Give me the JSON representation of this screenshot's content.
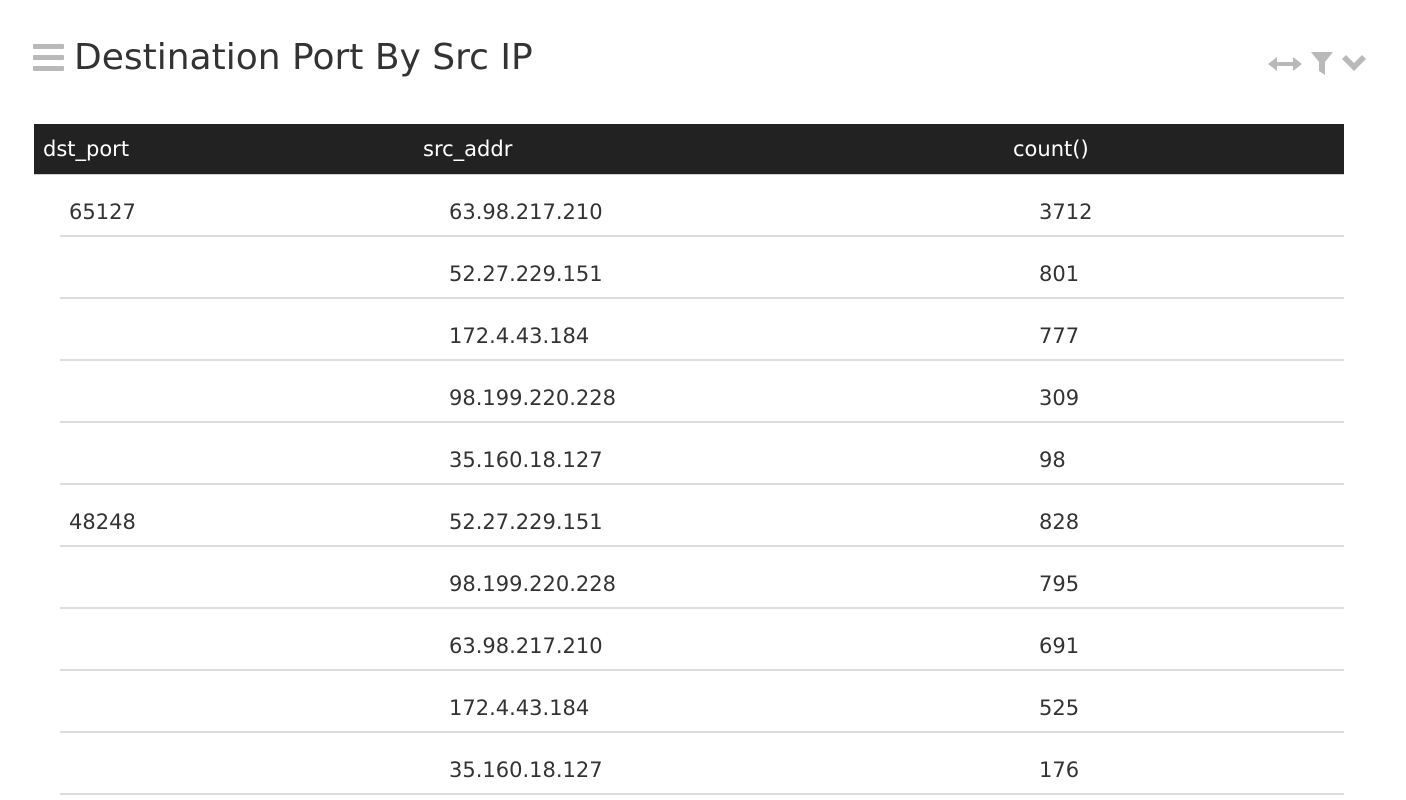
{
  "panel": {
    "title": "Destination Port By Src IP",
    "icons": {
      "drag": "hamburger-icon",
      "expand": "horizontal-arrows-icon",
      "filter": "filter-icon",
      "menu": "chevron-down-icon"
    },
    "colors": {
      "header_bg": "#222222",
      "icon_gray": "#b9b9b9",
      "row_border": "#dddddd"
    }
  },
  "table": {
    "columns": [
      "dst_port",
      "src_addr",
      "count()"
    ],
    "rows": [
      {
        "dst_port": "65127",
        "src_addr": "63.98.217.210",
        "count": "3712"
      },
      {
        "dst_port": "",
        "src_addr": "52.27.229.151",
        "count": "801"
      },
      {
        "dst_port": "",
        "src_addr": "172.4.43.184",
        "count": "777"
      },
      {
        "dst_port": "",
        "src_addr": "98.199.220.228",
        "count": "309"
      },
      {
        "dst_port": "",
        "src_addr": "35.160.18.127",
        "count": "98"
      },
      {
        "dst_port": "48248",
        "src_addr": "52.27.229.151",
        "count": "828"
      },
      {
        "dst_port": "",
        "src_addr": "98.199.220.228",
        "count": "795"
      },
      {
        "dst_port": "",
        "src_addr": "63.98.217.210",
        "count": "691"
      },
      {
        "dst_port": "",
        "src_addr": "172.4.43.184",
        "count": "525"
      },
      {
        "dst_port": "",
        "src_addr": "35.160.18.127",
        "count": "176"
      }
    ]
  }
}
